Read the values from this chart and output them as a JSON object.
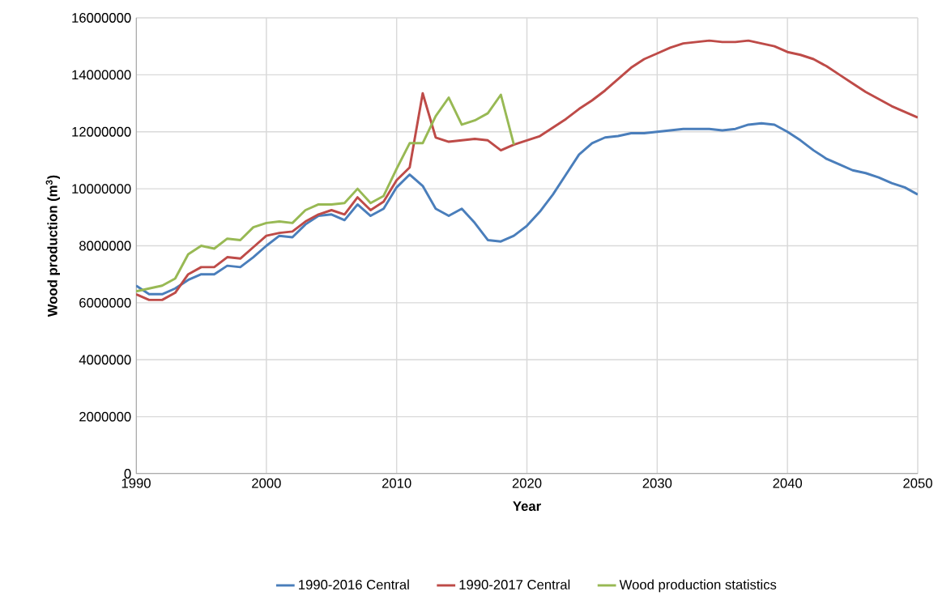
{
  "chart_data": {
    "type": "line",
    "xlabel": "Year",
    "ylabel": "Wood production (m$^{3}$)",
    "xlim": [
      1990,
      2050
    ],
    "xticks": [
      1990,
      2000,
      2010,
      2020,
      2030,
      2040,
      2050
    ],
    "ylim": [
      0,
      16000000
    ],
    "yticks": [
      0,
      2000000,
      4000000,
      6000000,
      8000000,
      10000000,
      12000000,
      14000000,
      16000000
    ],
    "grid": true,
    "legend": "bottom",
    "marker": "none",
    "line_style": "solid",
    "x": [
      1990,
      1991,
      1992,
      1993,
      1994,
      1995,
      1996,
      1997,
      1998,
      1999,
      2000,
      2001,
      2002,
      2003,
      2004,
      2005,
      2006,
      2007,
      2008,
      2009,
      2010,
      2011,
      2012,
      2013,
      2014,
      2015,
      2016,
      2017,
      2018,
      2019,
      2020,
      2021,
      2022,
      2023,
      2024,
      2025,
      2026,
      2027,
      2028,
      2029,
      2030,
      2031,
      2032,
      2033,
      2034,
      2035,
      2036,
      2037,
      2038,
      2039,
      2040,
      2041,
      2042,
      2043,
      2044,
      2045,
      2046,
      2047,
      2048,
      2049,
      2050
    ],
    "series": [
      {
        "name": "1990-2016 Central",
        "color": "#4a7ebb",
        "values": [
          6600000,
          6300000,
          6300000,
          6500000,
          6800000,
          7000000,
          7000000,
          7300000,
          7250000,
          7600000,
          8000000,
          8350000,
          8300000,
          8750000,
          9050000,
          9100000,
          8900000,
          9450000,
          9050000,
          9300000,
          10050000,
          10500000,
          10100000,
          9300000,
          9050000,
          9300000,
          8800000,
          8200000,
          8150000,
          8350000,
          8700000,
          9200000,
          9800000,
          10500000,
          11200000,
          11600000,
          11800000,
          11850000,
          11950000,
          11950000,
          12000000,
          12050000,
          12100000,
          12100000,
          12100000,
          12050000,
          12100000,
          12250000,
          12300000,
          12250000,
          12000000,
          11700000,
          11350000,
          11050000,
          10850000,
          10650000,
          10550000,
          10400000,
          10200000,
          10050000,
          9800000
        ]
      },
      {
        "name": "1990-2017 Central",
        "color": "#be4b48",
        "values": [
          6300000,
          6100000,
          6100000,
          6350000,
          7000000,
          7250000,
          7250000,
          7600000,
          7550000,
          7950000,
          8350000,
          8450000,
          8500000,
          8850000,
          9100000,
          9250000,
          9100000,
          9700000,
          9250000,
          9550000,
          10300000,
          10750000,
          13350000,
          11800000,
          11650000,
          11700000,
          11750000,
          11700000,
          11350000,
          11550000,
          11700000,
          11850000,
          12150000,
          12450000,
          12800000,
          13100000,
          13450000,
          13850000,
          14250000,
          14550000,
          14750000,
          14950000,
          15100000,
          15150000,
          15200000,
          15150000,
          15150000,
          15200000,
          15100000,
          15000000,
          14800000,
          14700000,
          14550000,
          14300000,
          14000000,
          13700000,
          13400000,
          13150000,
          12900000,
          12700000,
          12500000
        ]
      },
      {
        "name": "Wood production statistics",
        "color": "#98b954",
        "values": [
          6400000,
          6500000,
          6600000,
          6850000,
          7700000,
          8000000,
          7900000,
          8250000,
          8200000,
          8650000,
          8800000,
          8850000,
          8800000,
          9250000,
          9450000,
          9450000,
          9500000,
          10000000,
          9500000,
          9750000,
          10700000,
          11600000,
          11600000,
          12550000,
          13200000,
          12250000,
          12400000,
          12650000,
          13300000,
          11550000,
          null,
          null,
          null,
          null,
          null,
          null,
          null,
          null,
          null,
          null,
          null,
          null,
          null,
          null,
          null,
          null,
          null,
          null,
          null,
          null,
          null,
          null,
          null,
          null,
          null,
          null,
          null,
          null,
          null,
          null,
          null
        ]
      }
    ]
  }
}
